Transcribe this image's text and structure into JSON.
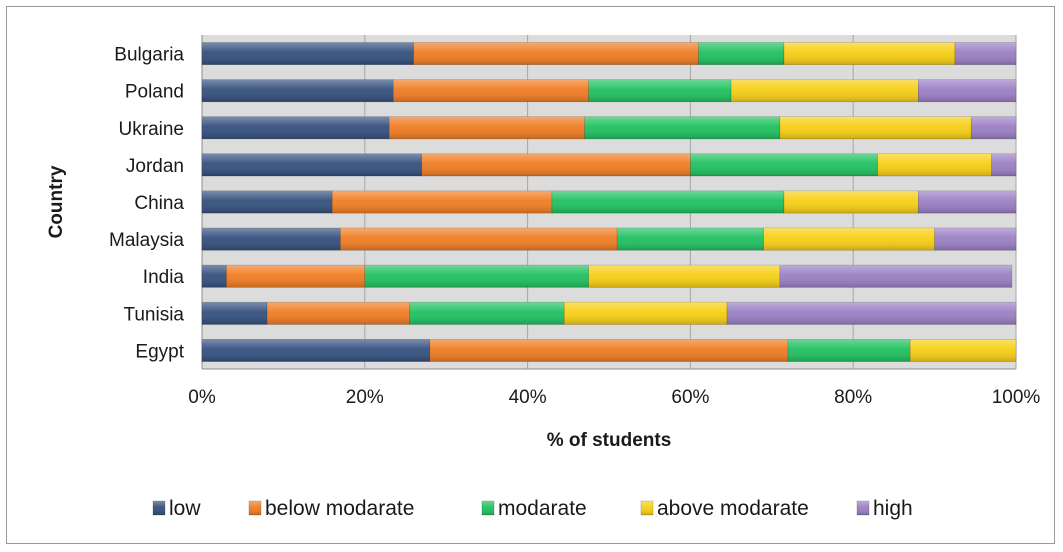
{
  "chart_data": {
    "type": "bar",
    "orientation": "horizontal",
    "stacked": "percent",
    "xlabel": "% of students",
    "ylabel": "Country",
    "xlim": [
      0,
      100
    ],
    "x_ticks": [
      "0%",
      "20%",
      "40%",
      "60%",
      "80%",
      "100%"
    ],
    "grid": true,
    "legend_position": "bottom",
    "categories": [
      "Bulgaria",
      "Poland",
      "Ukraine",
      "Jordan",
      "China",
      "Malaysia",
      "India",
      "Tunisia",
      "Egypt"
    ],
    "series": [
      {
        "name": "low",
        "color": "#34507d",
        "values": [
          26,
          23.5,
          23,
          27,
          16,
          17,
          3,
          8,
          28
        ]
      },
      {
        "name": "below modarate",
        "color": "#f07c22",
        "values": [
          35,
          24,
          24,
          33,
          27,
          34,
          17,
          17.5,
          44
        ]
      },
      {
        "name": "modarate",
        "color": "#1fc160",
        "values": [
          10.5,
          17.5,
          24,
          23,
          28.5,
          18,
          27.5,
          19,
          15
        ]
      },
      {
        "name": "above modarate",
        "color": "#f7cf14",
        "values": [
          21,
          23,
          23.5,
          14,
          16.5,
          21,
          23.5,
          20,
          13
        ]
      },
      {
        "name": "high",
        "color": "#9a7fc4",
        "values": [
          7.5,
          12,
          5.5,
          3,
          12,
          10,
          28.5,
          35.5,
          0
        ]
      }
    ]
  }
}
